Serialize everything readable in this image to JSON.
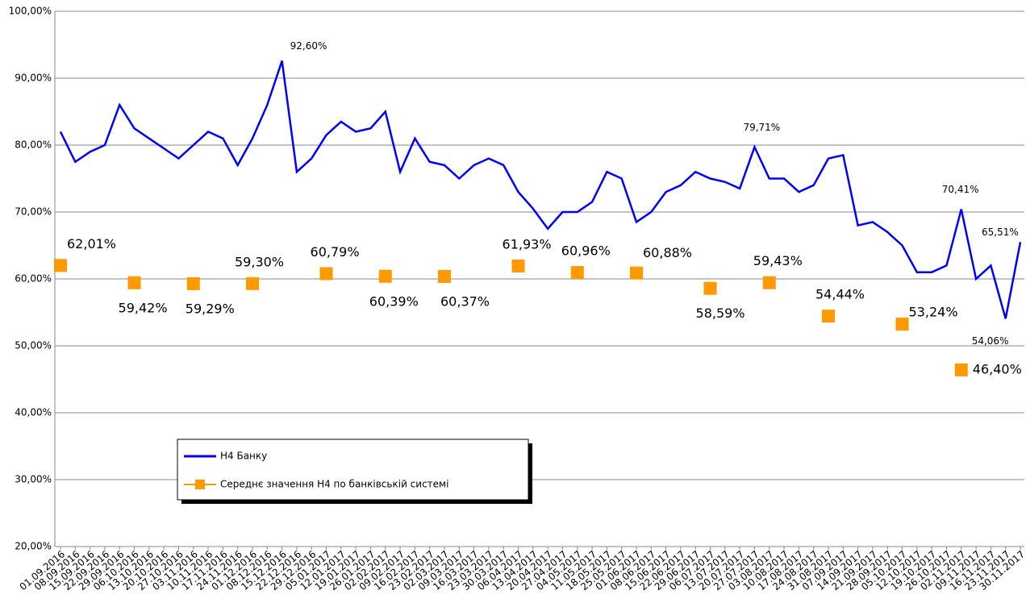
{
  "chart_data": {
    "type": "line",
    "categories": [
      "01.09.2016",
      "08.09.2016",
      "15.09.2016",
      "22.09.2016",
      "29.09.2016",
      "06.10.2016",
      "13.10.2016",
      "20.10.2016",
      "27.10.2016",
      "03.11.2016",
      "10.11.2016",
      "17.11.2016",
      "24.11.2016",
      "01.12.2016",
      "08.12.2016",
      "15.12.2016",
      "22.12.2016",
      "29.12.2016",
      "05.01.2017",
      "12.01.2017",
      "19.01.2017",
      "26.01.2017",
      "02.02.2017",
      "09.02.2017",
      "16.02.2017",
      "23.02.2017",
      "02.03.2017",
      "09.03.2017",
      "16.03.2017",
      "23.03.2017",
      "30.03.2017",
      "06.04.2017",
      "13.04.2017",
      "20.04.2017",
      "27.04.2017",
      "04.05.2017",
      "11.05.2017",
      "18.05.2017",
      "25.05.2017",
      "01.06.2017",
      "08.06.2017",
      "15.06.2017",
      "22.06.2017",
      "29.06.2017",
      "06.07.2017",
      "13.07.2017",
      "20.07.2017",
      "27.07.2017",
      "03.08.2017",
      "10.08.2017",
      "17.08.2017",
      "24.08.2017",
      "31.08.2017",
      "07.09.2017",
      "14.09.2017",
      "21.09.2017",
      "28.09.2017",
      "05.10.2017",
      "12.10.2017",
      "19.10.2017",
      "26.10.2017",
      "02.11.2017",
      "09.11.2017",
      "16.11.2017",
      "23.11.2017",
      "30.11.2017"
    ],
    "series": [
      {
        "name": "Н4 Банку",
        "color": "#0000ff",
        "style": "line",
        "values": [
          82,
          77.5,
          79,
          80,
          86,
          82.5,
          81,
          79.5,
          78,
          80,
          82,
          81,
          77,
          81,
          86,
          92.6,
          76,
          78,
          81.5,
          83.5,
          82,
          82.5,
          85,
          76,
          81,
          77.5,
          77,
          75,
          77,
          78,
          77,
          73,
          70.5,
          67.5,
          70,
          70,
          71.5,
          76,
          75,
          68.5,
          70,
          73,
          74,
          76,
          75,
          74.5,
          73.5,
          79.71,
          75,
          75,
          73,
          74,
          78,
          78.5,
          68,
          68.5,
          67,
          65,
          61,
          61,
          62,
          70.41,
          60,
          62,
          54.06,
          65.51
        ],
        "value_labels": [
          null,
          null,
          null,
          null,
          null,
          null,
          null,
          null,
          null,
          null,
          null,
          null,
          null,
          null,
          null,
          "92,60%",
          null,
          null,
          null,
          null,
          null,
          null,
          null,
          null,
          null,
          null,
          null,
          null,
          null,
          null,
          null,
          null,
          null,
          null,
          null,
          null,
          null,
          null,
          null,
          null,
          null,
          null,
          null,
          null,
          null,
          null,
          null,
          "79,71%",
          null,
          null,
          null,
          null,
          null,
          null,
          null,
          null,
          null,
          null,
          null,
          null,
          null,
          "70,41%",
          null,
          null,
          "54,06%",
          "65,51%"
        ]
      },
      {
        "name": "Середнє значення Н4 по банківській системі",
        "color": "#ff9900",
        "style": "marker",
        "values": [
          62.01,
          null,
          null,
          null,
          null,
          59.42,
          null,
          null,
          null,
          59.29,
          null,
          null,
          null,
          59.3,
          null,
          null,
          null,
          null,
          60.79,
          null,
          null,
          null,
          60.39,
          null,
          null,
          null,
          60.37,
          null,
          null,
          null,
          null,
          61.93,
          null,
          null,
          null,
          60.96,
          null,
          null,
          null,
          60.88,
          null,
          null,
          null,
          null,
          58.59,
          null,
          null,
          null,
          59.43,
          null,
          null,
          null,
          54.44,
          null,
          null,
          null,
          null,
          53.24,
          null,
          null,
          null,
          46.4,
          null,
          null,
          null,
          null
        ],
        "value_labels": [
          "62,01%",
          null,
          null,
          null,
          null,
          "59,42%",
          null,
          null,
          null,
          "59,29%",
          null,
          null,
          null,
          "59,30%",
          null,
          null,
          null,
          null,
          "60,79%",
          null,
          null,
          null,
          "60,39%",
          null,
          null,
          null,
          "60,37%",
          null,
          null,
          null,
          null,
          "61,93%",
          null,
          null,
          null,
          "60,96%",
          null,
          null,
          null,
          "60,88%",
          null,
          null,
          null,
          null,
          "58,59%",
          null,
          null,
          null,
          "59,43%",
          null,
          null,
          null,
          "54,44%",
          null,
          null,
          null,
          null,
          "53,24%",
          null,
          null,
          null,
          "46,40%",
          null,
          null,
          null,
          null
        ]
      }
    ],
    "ylim": [
      20,
      100
    ],
    "yticks": [
      {
        "value": 20,
        "label": "20,00%"
      },
      {
        "value": 30,
        "label": "30,00%"
      },
      {
        "value": 40,
        "label": "40,00%"
      },
      {
        "value": 50,
        "label": "50,00%"
      },
      {
        "value": 60,
        "label": "60,00%"
      },
      {
        "value": 70,
        "label": "70,00%"
      },
      {
        "value": 80,
        "label": "80,00%"
      },
      {
        "value": 90,
        "label": "90,00%"
      },
      {
        "value": 100,
        "label": "100,00%"
      }
    ],
    "grid": true
  }
}
